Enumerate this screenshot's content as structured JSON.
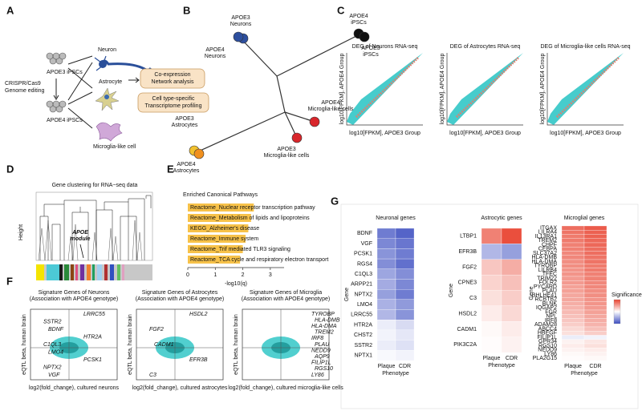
{
  "panel_a": {
    "letter": "A",
    "apoe3_ipsc": "APOE3 iPSCs",
    "editing": [
      "CRISPR/Cas9",
      "Genome editing"
    ],
    "apoe4_ipsc": "APOE4 iPSCs",
    "cells": [
      "Neuron",
      "Astrocyte",
      "Microglia-like cell"
    ],
    "analyses": [
      [
        "Co-expression",
        "Network analysis"
      ],
      [
        "Cell type-specific",
        "Transcriptome profiling"
      ]
    ]
  },
  "panel_b": {
    "letter": "B",
    "labels": [
      [
        "APOE3",
        "Neurons"
      ],
      [
        "APOE4",
        "Neurons"
      ],
      [
        "APOE4",
        "iPSCs"
      ],
      [
        "APOE3",
        "iPSCs"
      ],
      [
        "APOE3",
        "Astrocytes"
      ],
      [
        "APOE4",
        "Astrocytes"
      ],
      [
        "APOE4",
        "Microglia-like cells"
      ],
      [
        "APOE3",
        "Microglia-like cells"
      ]
    ]
  },
  "panel_c": {
    "letter": "C",
    "plots": [
      {
        "title": "DEG of Neurons RNA-seq",
        "xlabel": "log10[FPKM], APOE3 Group",
        "ylabel": "log10[FPKM], APOE4 Group"
      },
      {
        "title": "DEG of Astrocytes RNA-seq",
        "xlabel": "log10[FPKM], APOE3 Group",
        "ylabel": "log10[FPKM], APOE4 Group"
      },
      {
        "title": "DEG of Microglia-like cells RNA-seq",
        "xlabel": "log10[FPKM], APOE3 Group",
        "ylabel": "log10[FPKM], APOE4 Group"
      }
    ]
  },
  "panel_d": {
    "letter": "D",
    "title": "Gene clustering for RNA−seq data",
    "ylabel": "Height",
    "module": [
      "APOE",
      "module"
    ]
  },
  "panel_e": {
    "letter": "E",
    "chart": {
      "type": "bar",
      "title": "Enriched Canonical Pathways",
      "categories": [
        "Reactome_Nuclear receptor transcription pathway",
        "Reactome_Metabolism of lipids and lipoproteins",
        "KEGG_Alzheimer's disease",
        "Reactome_Immune system",
        "Reactome_Trif mediated TLR3 signaling",
        "Reactome_TCA cycle and respiratory electron transport"
      ],
      "values": [
        2.4,
        2.3,
        2.2,
        2.1,
        2.0,
        1.9
      ],
      "color": "#f7c24a",
      "xlim": [
        0,
        3.5
      ],
      "xticks": [
        0,
        1,
        2,
        3
      ],
      "xlabel": "-log10(q)"
    }
  },
  "panel_f": {
    "letter": "F",
    "plots": [
      {
        "title": [
          "Signature Genes of Neurons",
          "(Association with APOE4 genotype)"
        ],
        "xlabel": "log2(fold_change), cultured neurons",
        "ylabel": "eQTL beta, human brain",
        "genes": [
          "LRRC55",
          "SSTR2",
          "BDNF",
          "HTR2A",
          "C1QL3",
          "LMO4",
          "PCSK1",
          "NPTX2",
          "VGF"
        ]
      },
      {
        "title": [
          "Signature Genes of Astrocytes",
          "(Association with APOE4 genotype)"
        ],
        "xlabel": "log2(fold_change), cultured astrocytes",
        "ylabel": "eQTL beta, human brain",
        "genes": [
          "HSDL2",
          "FGF2",
          "CADM1",
          "EFR3B",
          "C3"
        ]
      },
      {
        "title": [
          "Signature Genes of Microglia",
          "(Association with APOE4 genotype)"
        ],
        "xlabel": "log2(fold_change), cultured microglia-like cells",
        "ylabel": "eQTL beta, human brain",
        "genes": [
          "TYROBP",
          "HLA-DMB",
          "HLA-DMA",
          "TREM2",
          "IRF8",
          "PLAU",
          "NEDD9",
          "AQP9",
          "FILIP1L",
          "RGS10",
          "LY86"
        ]
      }
    ]
  },
  "panel_g": {
    "letter": "G",
    "columns": [
      "Plaque",
      "CDR"
    ],
    "xlabel": "Phenotype",
    "ylabel": "Gene",
    "legend_title": "Significance",
    "clim": [
      -3,
      3
    ],
    "heatmaps": [
      {
        "title": "Neuronal genes",
        "genes": [
          "BDNF",
          "VGF",
          "PCSK1",
          "RGS4",
          "C1QL3",
          "ARPP21",
          "NPTX2",
          "LMO4",
          "LRRC55",
          "HTR2A",
          "CHST2",
          "SSTR2",
          "NPTX1"
        ],
        "values": [
          [
            -2.2,
            -2.6
          ],
          [
            -2.0,
            -2.3
          ],
          [
            -1.8,
            -2.2
          ],
          [
            -1.9,
            -2.4
          ],
          [
            -1.5,
            -1.9
          ],
          [
            -1.4,
            -2.0
          ],
          [
            -1.6,
            -2.2
          ],
          [
            -1.3,
            -1.7
          ],
          [
            -1.2,
            -1.8
          ],
          [
            -0.3,
            -0.6
          ],
          [
            -0.2,
            -0.4
          ],
          [
            -0.3,
            -0.5
          ],
          [
            -0.1,
            -0.2
          ]
        ]
      },
      {
        "title": "Astrocytic genes",
        "genes": [
          "LTBP1",
          "EFR3B",
          "FGF2",
          "CPNE3",
          "C3",
          "HSDL2",
          "CADM1",
          "PIK3C2A"
        ],
        "values": [
          [
            2.0,
            2.8
          ],
          [
            -1.2,
            -1.6
          ],
          [
            0.9,
            1.3
          ],
          [
            0.7,
            1.0
          ],
          [
            0.5,
            0.8
          ],
          [
            0.3,
            0.6
          ],
          [
            0.1,
            0.3
          ],
          [
            0.05,
            0.2
          ]
        ]
      },
      {
        "title": "Microglial genes",
        "genes": [
          "ITGAX",
          "LILRA4",
          "IL13RA1",
          "TREM2",
          "CHPF",
          "CEBPA",
          "SLC37A2",
          "HLA-DMB",
          "HLA-DMA",
          "TYROBP",
          "LILRB4",
          "TFEC",
          "TRIM22",
          "FOLR2",
          "PYCARD",
          "PLAU",
          "BHLHE41",
          "RCBTB2",
          "BLNK",
          "IQGAP2",
          "FGR",
          "NPL",
          "IRF8",
          "ADAM28",
          "ABCC4",
          "HBEGF",
          "FILIP1L",
          "GPR34",
          "RGS10",
          "NEDD9",
          "LY86",
          "PLA2G15"
        ],
        "values": [
          [
            2.3,
            2.6
          ],
          [
            2.2,
            2.5
          ],
          [
            2.1,
            2.5
          ],
          [
            2.1,
            2.4
          ],
          [
            2.0,
            2.4
          ],
          [
            2.0,
            2.3
          ],
          [
            1.9,
            2.3
          ],
          [
            1.9,
            2.2
          ],
          [
            1.8,
            2.2
          ],
          [
            1.8,
            2.1
          ],
          [
            1.7,
            2.1
          ],
          [
            1.7,
            2.0
          ],
          [
            1.6,
            2.0
          ],
          [
            1.6,
            1.9
          ],
          [
            1.5,
            1.9
          ],
          [
            1.5,
            1.8
          ],
          [
            1.4,
            1.8
          ],
          [
            1.4,
            1.7
          ],
          [
            1.3,
            1.7
          ],
          [
            1.2,
            1.6
          ],
          [
            1.1,
            1.5
          ],
          [
            1.0,
            1.4
          ],
          [
            0.9,
            1.3
          ],
          [
            0.8,
            1.2
          ],
          [
            0.6,
            1.0
          ],
          [
            0.5,
            0.8
          ],
          [
            -0.3,
            -0.2
          ],
          [
            0.2,
            0.4
          ],
          [
            0.3,
            0.5
          ],
          [
            0.2,
            0.3
          ],
          [
            0.1,
            0.2
          ],
          [
            0.05,
            0.1
          ]
        ]
      }
    ]
  }
}
